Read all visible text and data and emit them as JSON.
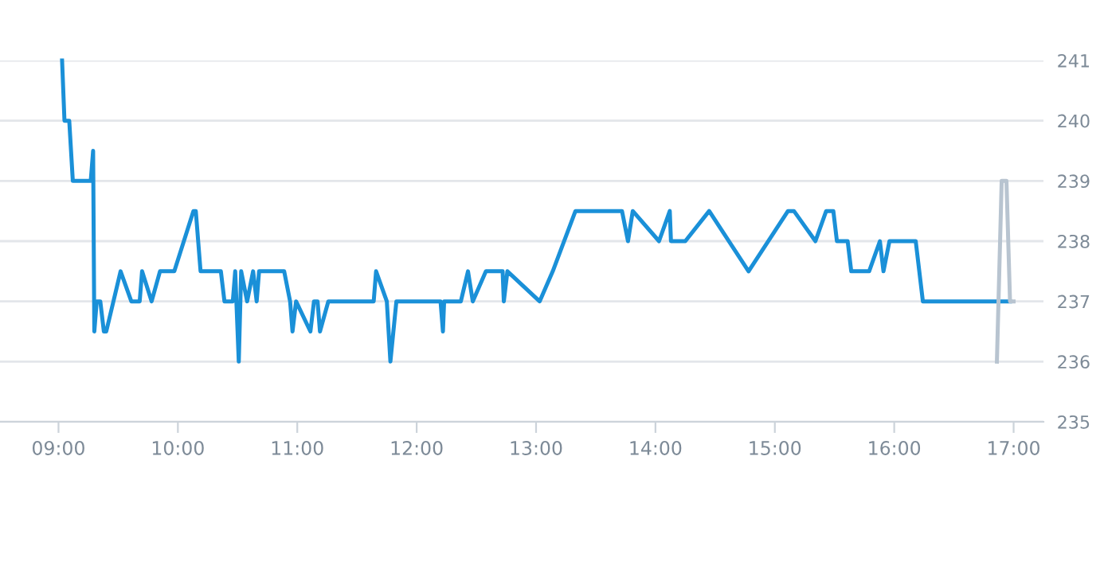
{
  "chart_data": {
    "type": "line",
    "xlim": [
      8.51,
      17.25
    ],
    "ylim": [
      235,
      241
    ],
    "xticks": [
      {
        "value": 9,
        "label": "09:00"
      },
      {
        "value": 10,
        "label": "10:00"
      },
      {
        "value": 11,
        "label": "11:00"
      },
      {
        "value": 12,
        "label": "12:00"
      },
      {
        "value": 13,
        "label": "13:00"
      },
      {
        "value": 14,
        "label": "14:00"
      },
      {
        "value": 15,
        "label": "15:00"
      },
      {
        "value": 16,
        "label": "16:00"
      },
      {
        "value": 17,
        "label": "17:00"
      }
    ],
    "yticks": [
      235,
      236,
      237,
      238,
      239,
      240,
      241
    ],
    "grid": "y",
    "marker": "none",
    "line_style": "solid",
    "series": [
      {
        "color": "#1a90d8",
        "x": [
          9.03,
          9.05,
          9.09,
          9.12,
          9.27,
          9.29,
          9.3,
          9.32,
          9.35,
          9.38,
          9.4,
          9.52,
          9.61,
          9.68,
          9.7,
          9.78,
          9.85,
          9.97,
          10.13,
          10.15,
          10.19,
          10.36,
          10.39,
          10.46,
          10.48,
          10.51,
          10.53,
          10.58,
          10.63,
          10.66,
          10.68,
          10.89,
          10.94,
          10.96,
          10.99,
          11.11,
          11.14,
          11.17,
          11.19,
          11.26,
          11.64,
          11.66,
          11.75,
          11.78,
          11.83,
          12.2,
          12.22,
          12.23,
          12.37,
          12.43,
          12.47,
          12.58,
          12.72,
          12.73,
          12.76,
          13.03,
          13.14,
          13.33,
          13.72,
          13.77,
          13.81,
          14.03,
          14.12,
          14.13,
          14.25,
          14.45,
          14.78,
          15.11,
          15.16,
          15.34,
          15.43,
          15.49,
          15.52,
          15.61,
          15.64,
          15.79,
          15.88,
          15.91,
          15.96,
          16.18,
          16.24,
          16.97
        ],
        "values": [
          241,
          240,
          240,
          239,
          239,
          239.5,
          236.5,
          237,
          237,
          236.5,
          236.5,
          237.5,
          237,
          237,
          237.5,
          237,
          237.5,
          237.5,
          238.5,
          238.5,
          237.5,
          237.5,
          237,
          237,
          237.5,
          236,
          237.5,
          237,
          237.5,
          237,
          237.5,
          237.5,
          237,
          236.5,
          237,
          236.5,
          237,
          237,
          236.5,
          237,
          237,
          237.5,
          237,
          236,
          237,
          237,
          236.5,
          237,
          237,
          237.5,
          237,
          237.5,
          237.5,
          237,
          237.5,
          237,
          237.5,
          238.5,
          238.5,
          238,
          238.5,
          238,
          238.5,
          238,
          238,
          238.5,
          237.5,
          238.5,
          238.5,
          238,
          238.5,
          238.5,
          238,
          238,
          237.5,
          237.5,
          238,
          237.5,
          238,
          238,
          237,
          237
        ]
      },
      {
        "color": "#b8c4d0",
        "x": [
          16.86,
          16.9,
          16.94,
          16.97,
          17.0
        ],
        "values": [
          236,
          239,
          239,
          237,
          237
        ]
      }
    ]
  }
}
